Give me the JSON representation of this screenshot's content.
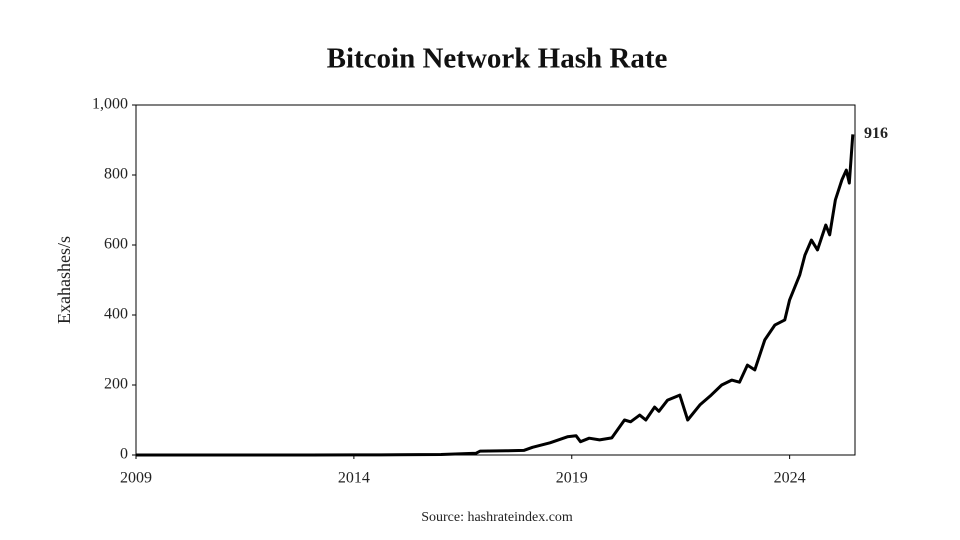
{
  "chart_data": {
    "type": "line",
    "title": "Bitcoin Network Hash Rate",
    "ylabel": "Exahashes/s",
    "source": "Source: hashrateindex.com",
    "x": [
      2009,
      2010,
      2011,
      2012,
      2013,
      2014,
      2015,
      2016,
      2016.8,
      2016.9,
      2017.5,
      2017.9,
      2018.1,
      2018.5,
      2018.9,
      2019.1,
      2019.2,
      2019.4,
      2019.64,
      2019.92,
      2020.21,
      2020.35,
      2020.56,
      2020.7,
      2020.9,
      2021.0,
      2021.2,
      2021.48,
      2021.66,
      2021.94,
      2022.2,
      2022.44,
      2022.67,
      2022.85,
      2023.03,
      2023.2,
      2023.43,
      2023.66,
      2023.89,
      2024.0,
      2024.23,
      2024.35,
      2024.5,
      2024.64,
      2024.83,
      2024.92,
      2025.05,
      2025.2,
      2025.3,
      2025.37,
      2025.45
    ],
    "series": [
      {
        "name": "Hash rate",
        "color": "#000000",
        "values": [
          0,
          0,
          0,
          0.1,
          0.1,
          0.3,
          0.5,
          1.5,
          5,
          11,
          12,
          13,
          22,
          35,
          52,
          55,
          38,
          48,
          43,
          49,
          100,
          95,
          114,
          100,
          137,
          125,
          157,
          171,
          100,
          143,
          171,
          200,
          214,
          208,
          257,
          243,
          329,
          371,
          386,
          443,
          514,
          571,
          614,
          586,
          657,
          629,
          729,
          786,
          814,
          777,
          916
        ]
      }
    ],
    "xlim": [
      2009,
      2025.5
    ],
    "xticks": [
      2009,
      2014,
      2019,
      2024
    ],
    "ylim": [
      0,
      1000
    ],
    "yticks": [
      0,
      200,
      400,
      600,
      800,
      {
        "value": 1000,
        "label": "1,000"
      }
    ],
    "grid": false
  }
}
